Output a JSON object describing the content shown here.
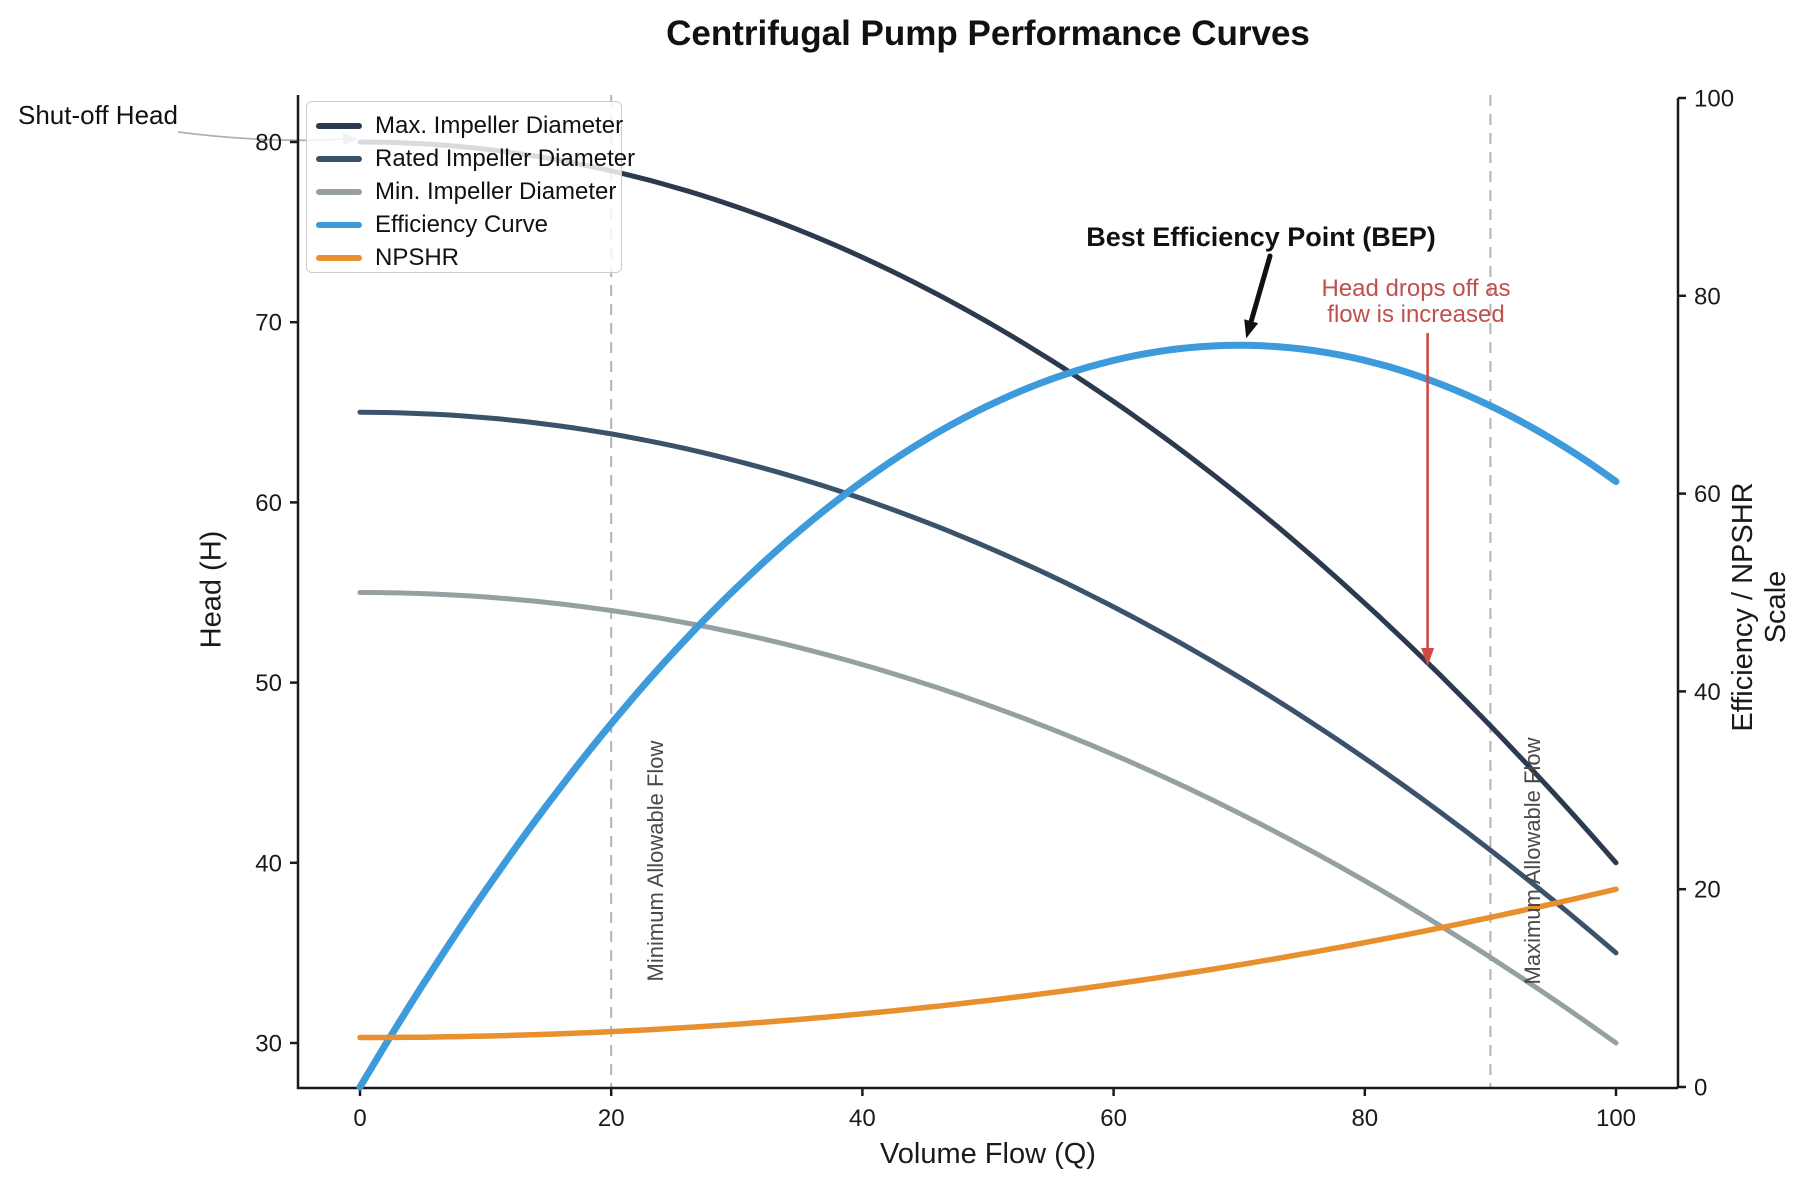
{
  "title": "Centrifugal Pump Performance Curves",
  "axes": {
    "x": {
      "label": "Volume Flow (Q)",
      "ticks": [
        0,
        20,
        40,
        60,
        80,
        100
      ],
      "range": [
        0,
        100
      ]
    },
    "y_left": {
      "label": "Head (H)",
      "ticks": [
        30,
        40,
        50,
        60,
        70,
        80
      ],
      "range": [
        27.5,
        82.5
      ]
    },
    "y_right": {
      "label": "Efficiency / NPSHR Scale",
      "ticks": [
        0,
        20,
        40,
        60,
        80,
        100
      ],
      "range": [
        0,
        100
      ]
    }
  },
  "legend": {
    "items": [
      {
        "label": "Max. Impeller Diameter",
        "color": "#2c3a4e"
      },
      {
        "label": "Rated Impeller Diameter",
        "color": "#3a536b"
      },
      {
        "label": "Min. Impeller Diameter",
        "color": "#94a0a2"
      },
      {
        "label": "Efficiency Curve",
        "color": "#3d9bdc"
      },
      {
        "label": "NPSHR",
        "color": "#e8902e"
      }
    ]
  },
  "annotations": {
    "shutoff": {
      "text": "Shut-off Head",
      "arrow_color": "#b0b0b0",
      "points_to": {
        "q": 0,
        "head": 80
      }
    },
    "bep": {
      "text": "Best Efficiency Point (BEP)",
      "arrow_color": "#111111",
      "points_to": {
        "q": 70,
        "efficiency": 75
      }
    },
    "head_drop": {
      "line1": "Head drops off as",
      "line2": "flow is increased",
      "color": "#c0504d",
      "arrow_color": "#cf4a45",
      "arrow_at_q": 85
    },
    "min_flow": {
      "text": "Minimum Allowable Flow",
      "q": 20
    },
    "max_flow": {
      "text": "Maximum Allowable Flow",
      "q": 90
    }
  },
  "reference_lines": [
    {
      "name": "minimum-allowable-flow",
      "q": 20,
      "color": "#b3b3b3",
      "style": "dashed"
    },
    {
      "name": "maximum-allowable-flow",
      "q": 90,
      "color": "#b3b3b3",
      "style": "dashed"
    }
  ],
  "chart_data": {
    "type": "line",
    "title": "Centrifugal Pump Performance Curves",
    "xlabel": "Volume Flow (Q)",
    "ylabel_left": "Head (H)",
    "ylabel_right": "Efficiency / NPSHR Scale",
    "xlim": [
      0,
      100
    ],
    "ylim_left": [
      27.5,
      82.5
    ],
    "ylim_right": [
      0,
      100
    ],
    "grid": false,
    "legend_position": "upper left",
    "x": [
      0,
      10,
      20,
      30,
      40,
      50,
      60,
      70,
      80,
      90,
      100
    ],
    "series": [
      {
        "name": "Max. Impeller Diameter",
        "axis": "left",
        "color": "#2c3a4e",
        "width": 5,
        "values": [
          80,
          79.6,
          78.4,
          76.4,
          73.6,
          70,
          65.6,
          60.4,
          54.4,
          47.6,
          40
        ]
      },
      {
        "name": "Rated Impeller Diameter",
        "axis": "left",
        "color": "#3a536b",
        "width": 5,
        "values": [
          65,
          64.7,
          63.8,
          62.3,
          60.2,
          57.5,
          54.2,
          50.3,
          45.8,
          40.7,
          35
        ]
      },
      {
        "name": "Min. Impeller Diameter",
        "axis": "left",
        "color": "#94a0a2",
        "width": 5,
        "values": [
          55,
          54.75,
          54,
          52.75,
          51,
          48.75,
          46,
          42.75,
          39,
          34.75,
          30
        ]
      },
      {
        "name": "Efficiency Curve",
        "axis": "right",
        "color": "#3d9bdc",
        "width": 7,
        "values": [
          0,
          19.9,
          36.7,
          50.5,
          61.2,
          68.9,
          73.5,
          75,
          73.5,
          68.9,
          61.2
        ]
      },
      {
        "name": "NPSHR",
        "axis": "right",
        "color": "#e8902e",
        "width": 5.5,
        "values": [
          5,
          5.15,
          5.6,
          6.35,
          7.4,
          8.75,
          10.4,
          12.35,
          14.6,
          17.15,
          20
        ]
      }
    ],
    "curve_models": [
      {
        "name": "Max. Impeller Diameter",
        "axis": "left",
        "color": "#2c3a4e",
        "width": 5,
        "c": 80,
        "k": -0.004,
        "q0": 0
      },
      {
        "name": "Rated Impeller Diameter",
        "axis": "left",
        "color": "#3a536b",
        "width": 5,
        "c": 65,
        "k": -0.003,
        "q0": 0
      },
      {
        "name": "Min. Impeller Diameter",
        "axis": "left",
        "color": "#94a0a2",
        "width": 5,
        "c": 55,
        "k": -0.0025,
        "q0": 0
      },
      {
        "name": "Efficiency Curve",
        "axis": "right",
        "color": "#3d9bdc",
        "width": 7,
        "c": 75,
        "k": -0.0153061,
        "q0": 70
      },
      {
        "name": "NPSHR",
        "axis": "right",
        "color": "#e8902e",
        "width": 5.5,
        "c": 5,
        "k": 0.0015,
        "q0": 0
      }
    ],
    "key_points": {
      "shut_off_head": 80,
      "best_efficiency_point": {
        "q": 70,
        "efficiency": 75
      },
      "min_allowable_flow_q": 20,
      "max_allowable_flow_q": 90
    }
  }
}
